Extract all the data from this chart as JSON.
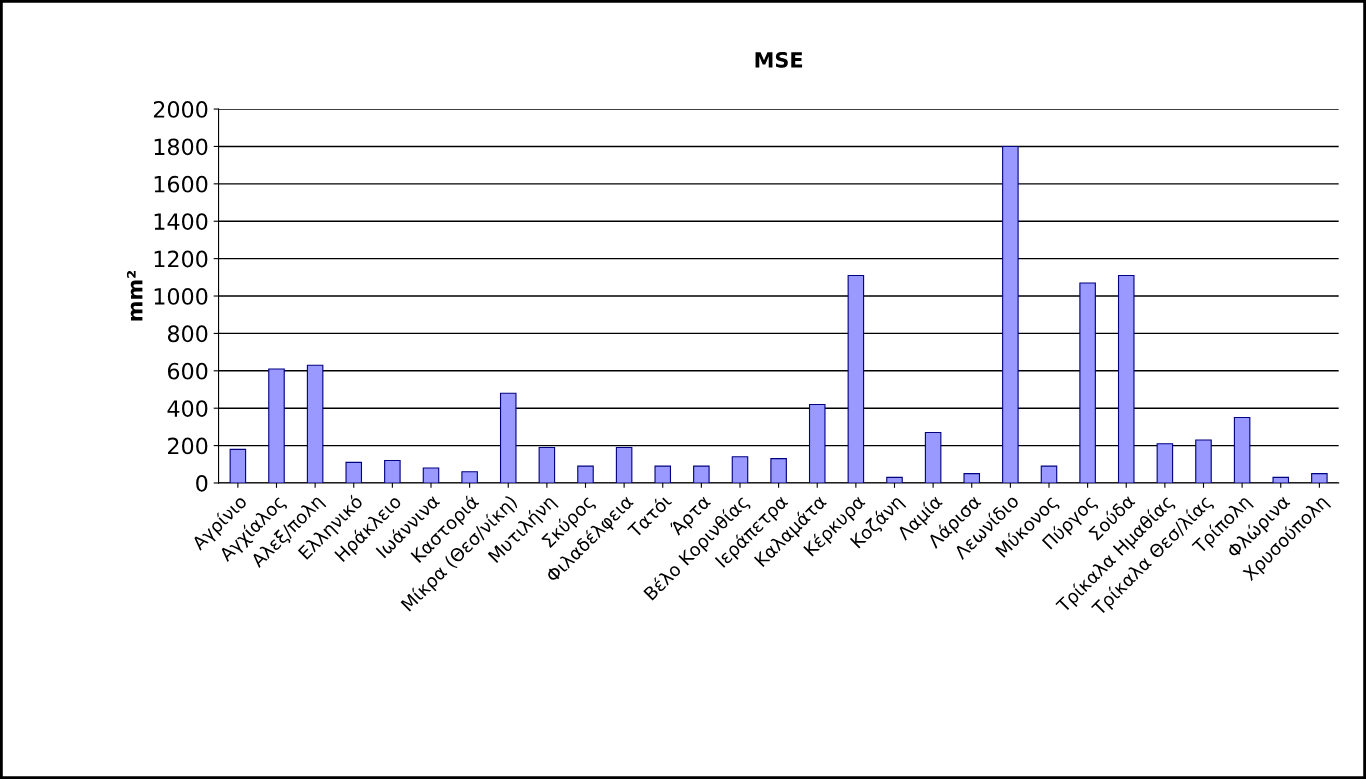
{
  "chart_data": {
    "type": "bar",
    "title": "MSE",
    "ylabel": "mm²",
    "categories": [
      "Αγρίνιο",
      "Αγχίαλος",
      "Αλεξ/πολη",
      "Ελληνικό",
      "Ηράκλειο",
      "Ιωάννινα",
      "Καστοριά",
      "Μίκρα (Θεσ/νίκη)",
      "Μυτιλήνη",
      "Σκύρος",
      "Φιλαδέλφεια",
      "Τατόι",
      "Άρτα",
      "Βέλο Κορινθίας",
      "Ιεράπετρα",
      "Καλαμάτα",
      "Κέρκυρα",
      "Κοζάνη",
      "Λαμία",
      "Λάρισα",
      "Λεωνίδιο",
      "Μύκονος",
      "Πύργος",
      "Σούδα",
      "Τρίκαλα Ημαθίας",
      "Τρίκαλα Θεσ/λίας",
      "Τρίπολη",
      "Φλώρινα",
      "Χρυσούπολη"
    ],
    "values": [
      180,
      610,
      630,
      110,
      120,
      80,
      60,
      480,
      190,
      90,
      190,
      90,
      90,
      140,
      130,
      420,
      1110,
      30,
      270,
      50,
      1800,
      90,
      1070,
      1110,
      210,
      230,
      350,
      30,
      50
    ],
    "color": "#9999ff",
    "ylim": [
      0,
      2000
    ],
    "yticks": [
      0,
      200,
      400,
      600,
      800,
      1000,
      1200,
      1400,
      1600,
      1800,
      2000
    ],
    "grid": "y"
  }
}
